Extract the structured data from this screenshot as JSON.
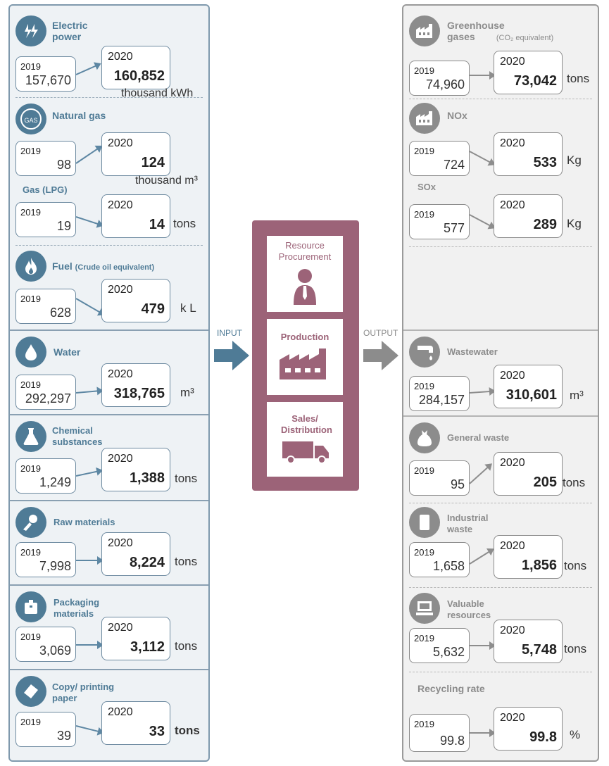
{
  "flow": {
    "input_label": "INPUT",
    "output_label": "OUTPUT"
  },
  "process": {
    "steps": [
      {
        "label": "Resource Procurement",
        "icon": "person-icon"
      },
      {
        "label": "Production",
        "icon": "factory-icon"
      },
      {
        "label": "Sales/ Distribution",
        "icon": "truck-icon"
      }
    ]
  },
  "inputs": {
    "electric": {
      "title": "Electric power",
      "icon": "lightning-icon",
      "y2019": "2019",
      "v2019": "157,670",
      "y2020": "2020",
      "v2020": "160,852",
      "unit": "thousand kWh"
    },
    "natural_gas": {
      "title": "Natural gas",
      "icon": "gas-icon",
      "icon_text": "GAS",
      "y2019": "2019",
      "v2019": "98",
      "y2020": "2020",
      "v2020": "124",
      "unit": "thousand m³"
    },
    "lpg": {
      "title": "Gas (LPG)",
      "y2019": "2019",
      "v2019": "19",
      "y2020": "2020",
      "v2020": "14",
      "unit": "tons"
    },
    "fuel": {
      "title": "Fuel",
      "subtitle": "(Crude oil equivalent)",
      "icon": "flame-icon",
      "y2019": "2019",
      "v2019": "628",
      "y2020": "2020",
      "v2020": "479",
      "unit": "k L"
    },
    "water": {
      "title": "Water",
      "icon": "water-drop-icon",
      "y2019": "2019",
      "v2019": "292,297",
      "y2020": "2020",
      "v2020": "318,765",
      "unit": "m³"
    },
    "chemical": {
      "title": "Chemical substances",
      "icon": "flask-icon",
      "y2019": "2019",
      "v2019": "1,249",
      "y2020": "2020",
      "v2020": "1,388",
      "unit": "tons"
    },
    "raw": {
      "title": "Raw materials",
      "icon": "raw-materials-icon",
      "y2019": "2019",
      "v2019": "7,998",
      "y2020": "2020",
      "v2020": "8,224",
      "unit": "tons"
    },
    "packaging": {
      "title": "Packaging materials",
      "icon": "package-icon",
      "y2019": "2019",
      "v2019": "3,069",
      "y2020": "2020",
      "v2020": "3,112",
      "unit": "tons"
    },
    "paper": {
      "title": "Copy/ printing paper",
      "icon": "paper-icon",
      "y2019": "2019",
      "v2019": "39",
      "y2020": "2020",
      "v2020": "33",
      "unit": "tons"
    }
  },
  "outputs": {
    "ghg": {
      "title": "Greenhouse gases",
      "subtitle": "(CO₂ equivalent)",
      "icon": "factory-emission-icon",
      "y2019": "2019",
      "v2019": "74,960",
      "y2020": "2020",
      "v2020": "73,042",
      "unit": "tons"
    },
    "nox": {
      "title": "NOx",
      "icon": "factory-emission-icon",
      "y2019": "2019",
      "v2019": "724",
      "y2020": "2020",
      "v2020": "533",
      "unit": "Kg"
    },
    "sox": {
      "title": "SOx",
      "y2019": "2019",
      "v2019": "577",
      "y2020": "2020",
      "v2020": "289",
      "unit": "Kg"
    },
    "wastewater": {
      "title": "Wastewater",
      "icon": "faucet-icon",
      "y2019": "2019",
      "v2019": "284,157",
      "y2020": "2020",
      "v2020": "310,601",
      "unit": "m³"
    },
    "general": {
      "title": "General waste",
      "icon": "garbage-bag-icon",
      "y2019": "2019",
      "v2019": "95",
      "y2020": "2020",
      "v2020": "205",
      "unit": "tons"
    },
    "industrial": {
      "title": "Industrial waste",
      "icon": "waste-container-icon",
      "y2019": "2019",
      "v2019": "1,658",
      "y2020": "2020",
      "v2020": "1,856",
      "unit": "tons"
    },
    "valuable": {
      "title": "Valuable resources",
      "icon": "computer-icon",
      "y2019": "2019",
      "v2019": "5,632",
      "y2020": "2020",
      "v2020": "5,748",
      "unit": "tons"
    },
    "recycling": {
      "title": "Recycling rate",
      "y2019": "2019",
      "v2019": "99.8",
      "y2020": "2020",
      "v2020": "99.8",
      "unit": "%"
    }
  },
  "colors": {
    "input_accent": "#4f7b96",
    "output_accent": "#8c8c8c",
    "process": "#9c6378"
  }
}
